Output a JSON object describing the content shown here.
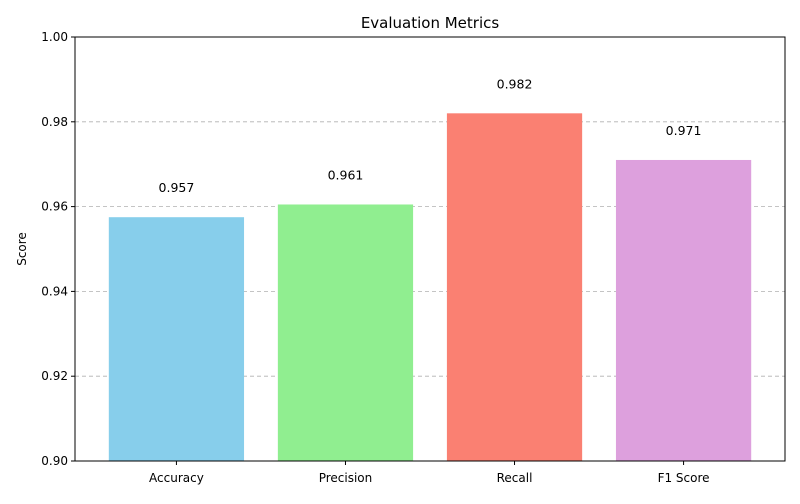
{
  "chart_data": {
    "type": "bar",
    "title": "Evaluation Metrics",
    "xlabel": "",
    "ylabel": "Score",
    "categories": [
      "Accuracy",
      "Precision",
      "Recall",
      "F1 Score"
    ],
    "values": [
      0.9575,
      0.9605,
      0.982,
      0.971
    ],
    "value_labels": [
      "0.957",
      "0.961",
      "0.982",
      "0.971"
    ],
    "colors": [
      "#87ceeb",
      "#90ee90",
      "#fa8072",
      "#dda0dd"
    ],
    "ylim": [
      0.9,
      1.0
    ],
    "yticks": [
      0.9,
      0.92,
      0.94,
      0.96,
      0.98,
      1.0
    ],
    "ytick_labels": [
      "0.90",
      "0.92",
      "0.94",
      "0.96",
      "0.98",
      "1.00"
    ],
    "grid": "y-dashed",
    "legend": "none"
  }
}
